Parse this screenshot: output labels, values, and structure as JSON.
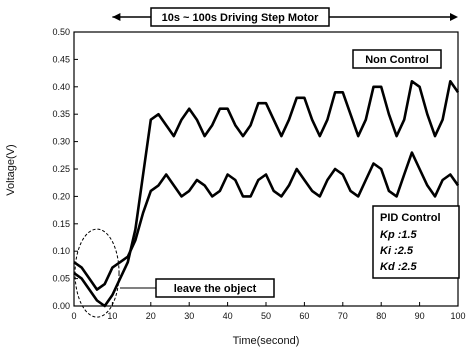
{
  "chart_data": {
    "type": "line",
    "title": "",
    "xlabel": "Time(second)",
    "ylabel": "Voltage(V)",
    "xlim": [
      0,
      100
    ],
    "ylim": [
      0.0,
      0.5
    ],
    "x_ticks": [
      "0",
      "10",
      "20",
      "30",
      "40",
      "50",
      "60",
      "70",
      "80",
      "90",
      "100"
    ],
    "y_ticks": [
      "0.00",
      "0.05",
      "0.10",
      "0.15",
      "0.20",
      "0.25",
      "0.30",
      "0.35",
      "0.40",
      "0.45",
      "0.50"
    ],
    "grid": false,
    "series": [
      {
        "x": [
          0,
          2,
          4,
          6,
          8,
          10,
          12,
          14,
          16,
          18,
          20,
          22,
          24,
          26,
          28,
          30,
          32,
          34,
          36,
          38,
          40,
          42,
          44,
          46,
          48,
          50,
          52,
          54,
          56,
          58,
          60,
          62,
          64,
          66,
          68,
          70,
          72,
          74,
          76,
          78,
          80,
          82,
          84,
          86,
          88,
          90,
          92,
          94,
          96,
          98,
          100
        ],
        "values": [
          0.06,
          0.05,
          0.03,
          0.01,
          0.0,
          0.02,
          0.05,
          0.08,
          0.14,
          0.24,
          0.34,
          0.35,
          0.33,
          0.31,
          0.34,
          0.36,
          0.34,
          0.31,
          0.33,
          0.36,
          0.36,
          0.33,
          0.31,
          0.33,
          0.37,
          0.37,
          0.34,
          0.31,
          0.34,
          0.38,
          0.38,
          0.34,
          0.31,
          0.34,
          0.39,
          0.39,
          0.35,
          0.31,
          0.34,
          0.4,
          0.4,
          0.35,
          0.31,
          0.34,
          0.41,
          0.4,
          0.35,
          0.31,
          0.34,
          0.41,
          0.39
        ]
      },
      {
        "x": [
          0,
          2,
          4,
          6,
          8,
          10,
          12,
          14,
          16,
          18,
          20,
          22,
          24,
          26,
          28,
          30,
          32,
          34,
          36,
          38,
          40,
          42,
          44,
          46,
          48,
          50,
          52,
          54,
          56,
          58,
          60,
          62,
          64,
          66,
          68,
          70,
          72,
          74,
          76,
          78,
          80,
          82,
          84,
          86,
          88,
          90,
          92,
          94,
          96,
          98,
          100
        ],
        "values": [
          0.08,
          0.07,
          0.05,
          0.03,
          0.04,
          0.07,
          0.08,
          0.09,
          0.12,
          0.17,
          0.21,
          0.22,
          0.24,
          0.22,
          0.2,
          0.21,
          0.23,
          0.22,
          0.2,
          0.21,
          0.24,
          0.23,
          0.2,
          0.2,
          0.23,
          0.24,
          0.21,
          0.2,
          0.22,
          0.25,
          0.23,
          0.21,
          0.2,
          0.23,
          0.25,
          0.24,
          0.21,
          0.2,
          0.23,
          0.26,
          0.25,
          0.21,
          0.2,
          0.24,
          0.28,
          0.25,
          0.22,
          0.2,
          0.23,
          0.24,
          0.22
        ]
      }
    ],
    "annotations": {
      "top_banner": "10s ~ 100s Driving Step Motor",
      "non_control": "Non Control",
      "leave_object": "leave the object",
      "pid_title": "PID Control",
      "kp": "Kp :1.5",
      "ki": "Ki :2.5",
      "kd": "Kd :2.5"
    }
  }
}
